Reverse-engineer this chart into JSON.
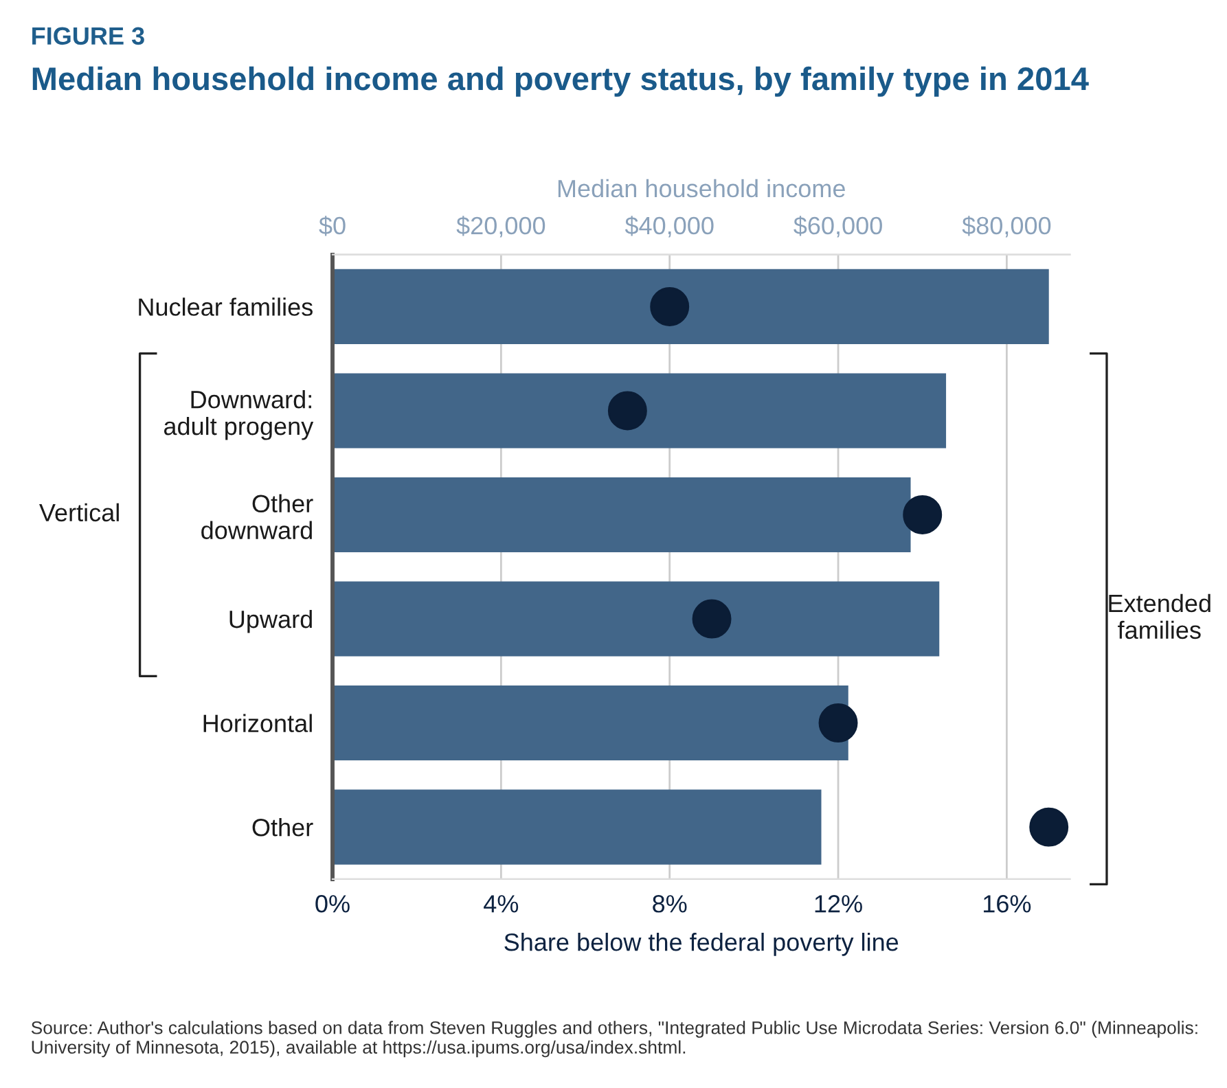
{
  "chart_data": {
    "type": "bar",
    "orientation": "horizontal",
    "title": "Median household income and poverty status, by family type in 2014",
    "subtitle": "FIGURE 3",
    "x2label": "Median household income",
    "xlabel": "Share below the federal poverty line",
    "categories": [
      "Nuclear families",
      "Downward:\nadult progeny",
      "Other\ndownward",
      "Upward",
      "Horizontal",
      "Other"
    ],
    "series": [
      {
        "type": "bar",
        "axis": "x2",
        "color": "#426689",
        "values": [
          85000,
          72800,
          68600,
          72000,
          61200,
          58000
        ]
      },
      {
        "type": "scatter",
        "color": "#0b1d36",
        "marker": "circle",
        "values": [
          8.0,
          7.0,
          14.0,
          9.0,
          12.0,
          17.0
        ]
      }
    ],
    "xlim": [
      0,
      17.5
    ],
    "xticks": [
      {
        "value": 0,
        "label": "0%"
      },
      {
        "value": 4,
        "label": "4%"
      },
      {
        "value": 8,
        "label": "8%"
      },
      {
        "value": 12,
        "label": "12%"
      },
      {
        "value": 16,
        "label": "16%"
      }
    ],
    "x2lim": [
      0,
      87500
    ],
    "x2ticks": [
      {
        "value": 0,
        "label": "$0"
      },
      {
        "value": 20000,
        "label": "$20,000"
      },
      {
        "value": 40000,
        "label": "$40,000"
      },
      {
        "value": 60000,
        "label": "$60,000"
      },
      {
        "value": 80000,
        "label": "$80,000"
      }
    ],
    "grid": "x",
    "annotations": [
      "Vertical",
      "Extended families",
      "Source: Author's calculations based on data from Steven Ruggles and others, \"Integrated Public Use Microdata Series: Version 6.0\" (Minneapolis: University of Minnesota, 2015), available at https://usa.ipums.org/usa/index.shtml."
    ]
  }
}
